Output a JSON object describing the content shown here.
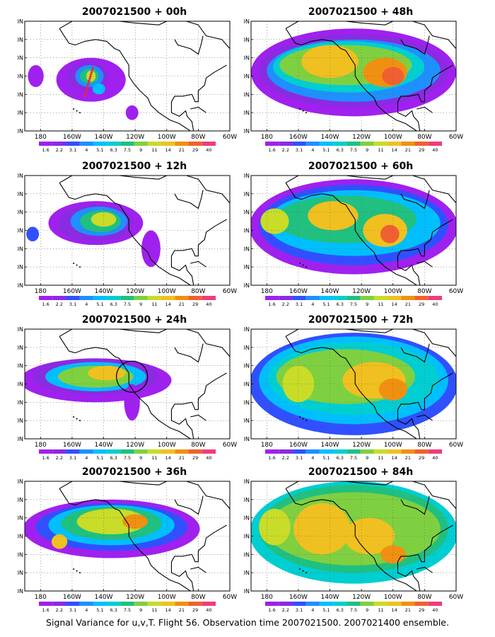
{
  "panels": [
    {
      "title": "2007021500 + 00h"
    },
    {
      "title": "2007021500 + 48h"
    },
    {
      "title": "2007021500 + 12h"
    },
    {
      "title": "2007021500 + 60h"
    },
    {
      "title": "2007021500 + 24h"
    },
    {
      "title": "2007021500 + 72h"
    },
    {
      "title": "2007021500 + 36h"
    },
    {
      "title": "2007021500 + 84h"
    }
  ],
  "lat_labels": [
    "70N",
    "60N",
    "50N",
    "40N",
    "30N",
    "20N",
    "10N"
  ],
  "lon_labels": [
    "180",
    "160W",
    "140W",
    "120W",
    "100W",
    "80W",
    "60W"
  ],
  "colorbar": {
    "labels": [
      "1.6",
      "2.2",
      "3.1",
      "4",
      "5.1",
      "6.3",
      "7.5",
      "9",
      "11",
      "14",
      "21",
      "29",
      "40"
    ],
    "colors": [
      "#ffffff",
      "#a020f0",
      "#8a2be2",
      "#3050ff",
      "#1e90ff",
      "#00bfff",
      "#00ced1",
      "#20c080",
      "#7fd040",
      "#c8dc28",
      "#f0c020",
      "#f09010",
      "#f06030",
      "#f03c78"
    ]
  },
  "caption": "Signal Variance for u,v,T. Flight 56. Observation time 2007021500. 2007021400 ensemble."
}
